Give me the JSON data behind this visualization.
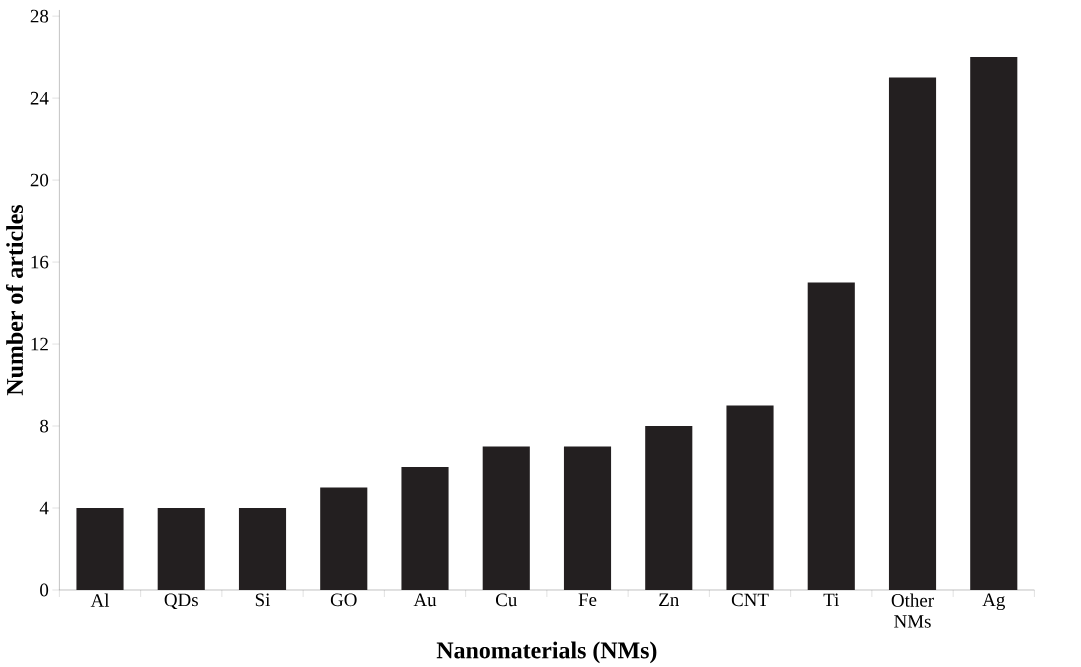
{
  "chart_data": {
    "type": "bar",
    "xlabel": "Nanomaterials (NMs)",
    "ylabel": "Number of articles",
    "categories": [
      "Al",
      "QDs",
      "Si",
      "GO",
      "Au",
      "Cu",
      "Fe",
      "Zn",
      "CNT",
      "Ti",
      "Other NMs",
      "Ag"
    ],
    "values": [
      4,
      4,
      4,
      5,
      6,
      7,
      7,
      8,
      9,
      15,
      25,
      26
    ],
    "color": "#231f20",
    "ylim": [
      0,
      28.3
    ],
    "yticks": [
      0,
      4,
      8,
      12,
      16,
      20,
      24,
      28
    ],
    "grid": false
  }
}
